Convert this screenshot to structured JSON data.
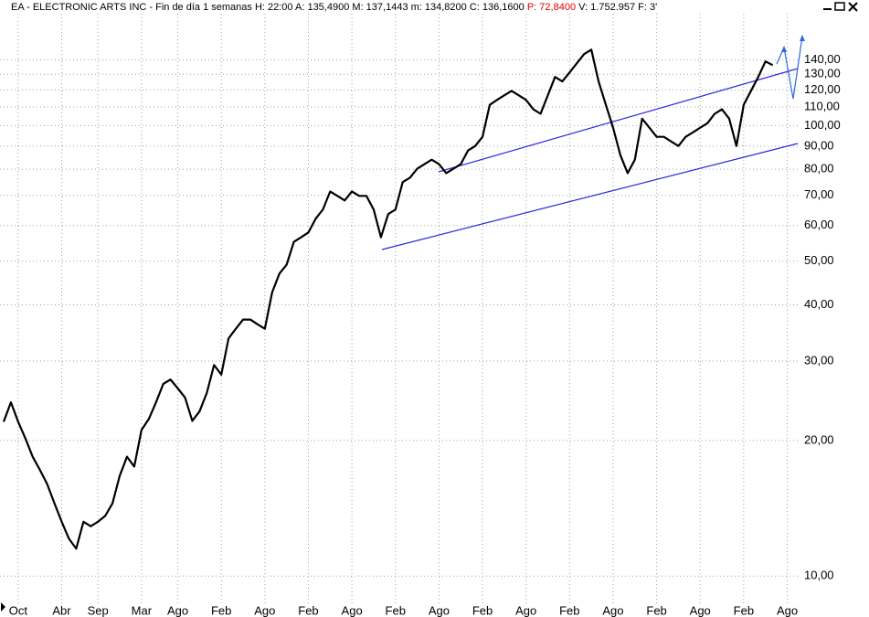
{
  "chart_data": {
    "type": "line",
    "title": "EA - ELECTRONIC ARTS INC - Fin de día 1 semanas",
    "info": [
      "H: 22:00",
      "A: 135,4900",
      "M: 137,1443",
      "m: 134,8200",
      "C: 136,1600",
      "P: 72,8400",
      "V: 1.752.957",
      "F: 3'"
    ],
    "categories": [
      null,
      null,
      "Oct",
      null,
      null,
      null,
      null,
      null,
      "Abr",
      null,
      null,
      null,
      null,
      "Sep",
      null,
      null,
      null,
      null,
      null,
      "Mar",
      null,
      null,
      null,
      null,
      "Ago",
      null,
      null,
      null,
      null,
      null,
      "Feb",
      null,
      null,
      null,
      null,
      null,
      "Ago",
      null,
      null,
      null,
      null,
      null,
      "Feb",
      null,
      null,
      null,
      null,
      null,
      "Ago",
      null,
      null,
      null,
      null,
      null,
      "Feb",
      null,
      null,
      null,
      null,
      null,
      "Ago",
      null,
      null,
      null,
      null,
      null,
      "Feb",
      null,
      null,
      null,
      null,
      null,
      "Ago",
      null,
      null,
      null,
      null,
      null,
      "Feb",
      null,
      null,
      null,
      null,
      null,
      "Ago",
      null,
      null,
      null,
      null,
      null,
      "Feb",
      null,
      null,
      null,
      null,
      null,
      "Ago",
      null,
      null,
      null,
      null,
      null,
      "Feb",
      null,
      null,
      null,
      null,
      null,
      "Ago"
    ],
    "values": [
      22,
      24.3,
      22,
      20.2,
      18.4,
      17.2,
      16,
      14.5,
      13.2,
      12.1,
      11.5,
      13.2,
      12.9,
      13.2,
      13.6,
      14.5,
      16.7,
      18.4,
      17.5,
      21.1,
      22.3,
      24.3,
      26.7,
      27.3,
      26.1,
      24.9,
      22.1,
      23.2,
      25.5,
      29.4,
      28,
      33.7,
      35.4,
      37.1,
      37.1,
      36.2,
      35.4,
      42.6,
      46.9,
      49.1,
      55.2,
      56.5,
      57.9,
      62.1,
      65.1,
      71.4,
      69.8,
      68.2,
      71.4,
      69.8,
      69.8,
      65.1,
      56.5,
      63.6,
      65.1,
      74.9,
      76.6,
      80.2,
      82.1,
      84,
      82.1,
      78.4,
      80.2,
      82.1,
      88,
      90.1,
      94.4,
      111.2,
      114,
      116.7,
      119.4,
      116.7,
      114,
      108.7,
      106.2,
      116.7,
      128.2,
      125.3,
      131.2,
      137.5,
      144.1,
      147.4,
      125.3,
      111.2,
      98.9,
      86,
      78.4,
      84,
      103.6,
      98.9,
      94.4,
      94.4,
      92.2,
      90.1,
      94.4,
      96.6,
      98.9,
      101.2,
      106.2,
      108.7,
      103.6,
      90.1,
      111.2,
      119.4,
      128.2,
      138.8,
      136.16,
      null,
      null
    ],
    "color": "#000000",
    "log_scale": true,
    "grid": true,
    "ylim": [
      8.7,
      190
    ],
    "yticks": [
      {
        "value": 10,
        "label": "10,00"
      },
      {
        "value": 20,
        "label": "20,00"
      },
      {
        "value": 30,
        "label": "30,00"
      },
      {
        "value": 40,
        "label": "40,00"
      },
      {
        "value": 50,
        "label": "50,00"
      },
      {
        "value": 60,
        "label": "60,00"
      },
      {
        "value": 70,
        "label": "70,00"
      },
      {
        "value": 80,
        "label": "80,00"
      },
      {
        "value": 90,
        "label": "90,00"
      },
      {
        "value": 100,
        "label": "100,00"
      },
      {
        "value": 110,
        "label": "110,00"
      },
      {
        "value": 120,
        "label": "120,00"
      },
      {
        "value": 130,
        "label": "130,00"
      },
      {
        "value": 140,
        "label": "140,00"
      }
    ]
  }
}
